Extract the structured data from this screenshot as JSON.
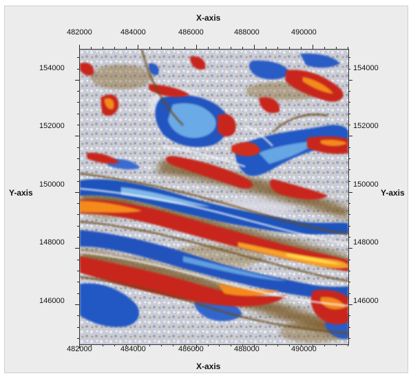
{
  "axes": {
    "top_title": "X-axis",
    "bottom_title": "X-axis",
    "left_title": "Y-axis",
    "right_title": "Y-axis",
    "x_ticks": [
      "482000",
      "484000",
      "486000",
      "488000",
      "490000"
    ],
    "y_ticks": [
      "154000",
      "152000",
      "150000",
      "148000",
      "146000"
    ]
  },
  "chart_data": {
    "type": "heatmap",
    "xlabel": "X-axis",
    "ylabel": "Y-axis",
    "xlim": [
      482000,
      491200
    ],
    "ylim": [
      144600,
      155100
    ],
    "x_ticks": [
      482000,
      484000,
      486000,
      488000,
      490000
    ],
    "y_ticks": [
      154000,
      152000,
      150000,
      148000,
      146000
    ],
    "colormap": [
      "#1e4fb8",
      "#5aa0e0",
      "#d8d8e0",
      "#ffffff",
      "#8b6a2e",
      "#c8281c",
      "#f58a1c",
      "#ffe040"
    ]
  }
}
